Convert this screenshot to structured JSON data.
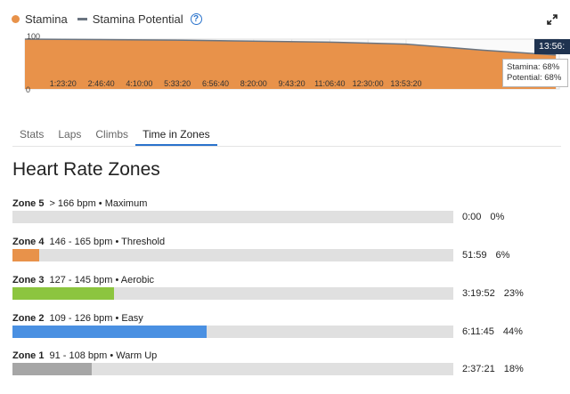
{
  "legend": {
    "stamina": "Stamina",
    "potential": "Stamina Potential",
    "help": "?"
  },
  "colors": {
    "stamina": "#e8924a",
    "potential": "#6a7480",
    "accent": "#2a73cc"
  },
  "chart_data": {
    "type": "area",
    "y_max_label": "100",
    "y_min_label": "0",
    "ylim": [
      0,
      100
    ],
    "x_ticks": [
      "1:23:20",
      "2:46:40",
      "4:10:00",
      "5:33:20",
      "6:56:40",
      "8:20:00",
      "9:43:20",
      "11:06:40",
      "12:30:00",
      "13:53:20"
    ],
    "series": [
      {
        "name": "Stamina",
        "x": [
          0,
          2,
          4,
          6,
          8,
          10,
          12,
          13.93
        ],
        "values": [
          100,
          99,
          98,
          96,
          94,
          90,
          78,
          68
        ]
      },
      {
        "name": "Stamina Potential",
        "x": [
          0,
          2,
          4,
          6,
          8,
          10,
          12,
          13.93
        ],
        "values": [
          100,
          99,
          98,
          96,
          94,
          90,
          78,
          68
        ]
      }
    ],
    "cursor_label": "13:56:",
    "tooltip": {
      "stamina": "Stamina: 68%",
      "potential": "Potential: 68%"
    }
  },
  "tabs": [
    {
      "label": "Stats",
      "active": false
    },
    {
      "label": "Laps",
      "active": false
    },
    {
      "label": "Climbs",
      "active": false
    },
    {
      "label": "Time in Zones",
      "active": true
    }
  ],
  "heading": "Heart Rate Zones",
  "zones": [
    {
      "name": "Zone 5",
      "range": "> 166 bpm • Maximum",
      "time": "0:00",
      "percent": "0%",
      "fraction": 0.0,
      "color": "#e0e0e0"
    },
    {
      "name": "Zone 4",
      "range": "146 - 165 bpm • Threshold",
      "time": "51:59",
      "percent": "6%",
      "fraction": 0.06,
      "color": "#e8924a"
    },
    {
      "name": "Zone 3",
      "range": "127 - 145 bpm • Aerobic",
      "time": "3:19:52",
      "percent": "23%",
      "fraction": 0.23,
      "color": "#8cc53f"
    },
    {
      "name": "Zone 2",
      "range": "109 - 126 bpm • Easy",
      "time": "6:11:45",
      "percent": "44%",
      "fraction": 0.44,
      "color": "#4a90e2"
    },
    {
      "name": "Zone 1",
      "range": "91 - 108 bpm • Warm Up",
      "time": "2:37:21",
      "percent": "18%",
      "fraction": 0.18,
      "color": "#a6a6a6"
    }
  ]
}
